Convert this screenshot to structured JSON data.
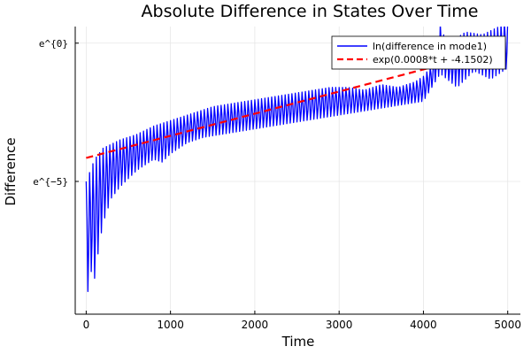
{
  "chart_data": {
    "type": "line",
    "title": "Absolute Difference in States Over Time",
    "xlabel": "Time",
    "ylabel": "Difference",
    "xlim": [
      -130,
      5150
    ],
    "ylim": [
      -9.8,
      0.6
    ],
    "xticks": [
      0,
      1000,
      2000,
      3000,
      4000,
      5000
    ],
    "yticks": [
      {
        "value": 0,
        "label": "e^{0}"
      },
      {
        "value": -5,
        "label": "e^{−5}"
      }
    ],
    "grid": true,
    "legend_position": "top-right",
    "series": [
      {
        "name": "ln(difference in mode1)",
        "color": "#0000ff",
        "style": "solid",
        "oscillation_period": 40,
        "upper_envelope": {
          "x": [
            0,
            100,
            200,
            400,
            600,
            800,
            1000,
            1200,
            1500,
            1700,
            1900,
            2100,
            2300,
            2500,
            2700,
            2900,
            3100,
            3300,
            3500,
            3700,
            3900,
            4000,
            4100,
            4200,
            4300,
            4400,
            4500,
            4700,
            4900,
            5000
          ],
          "y": [
            -5.0,
            -4.2,
            -3.8,
            -3.5,
            -3.3,
            -3.0,
            -2.8,
            -2.6,
            -2.3,
            -2.2,
            -2.1,
            -2.0,
            -1.9,
            -1.8,
            -1.7,
            -1.6,
            -1.6,
            -1.7,
            -1.5,
            -1.6,
            -1.4,
            -1.2,
            -0.8,
            0.7,
            -0.3,
            0.2,
            0.4,
            0.3,
            0.6,
            0.9
          ]
        },
        "lower_envelope": {
          "x": [
            0,
            50,
            100,
            150,
            200,
            300,
            400,
            500,
            600,
            700,
            800,
            900,
            1000,
            1100,
            1200,
            1400,
            1600,
            1800,
            2000,
            2200,
            2400,
            2600,
            2800,
            3000,
            3200,
            3400,
            3600,
            3800,
            4000,
            4100,
            4200,
            4400,
            4600,
            4800,
            5000
          ],
          "y": [
            -9.5,
            -8.2,
            -8.5,
            -7.4,
            -6.5,
            -5.6,
            -5.2,
            -4.9,
            -4.6,
            -4.4,
            -4.2,
            -4.3,
            -4.0,
            -3.8,
            -3.6,
            -3.4,
            -3.3,
            -3.2,
            -3.1,
            -3.0,
            -2.9,
            -2.8,
            -2.7,
            -2.6,
            -2.5,
            -2.4,
            -2.3,
            -2.2,
            -2.1,
            -1.6,
            -1.1,
            -1.6,
            -1.0,
            -1.3,
            -0.9
          ]
        }
      },
      {
        "name": "exp(0.0008*t + -4.1502)",
        "color": "#ff0000",
        "style": "dashed",
        "slope": 0.0008,
        "intercept": -4.1502,
        "x": [
          0,
          5000
        ]
      }
    ]
  }
}
